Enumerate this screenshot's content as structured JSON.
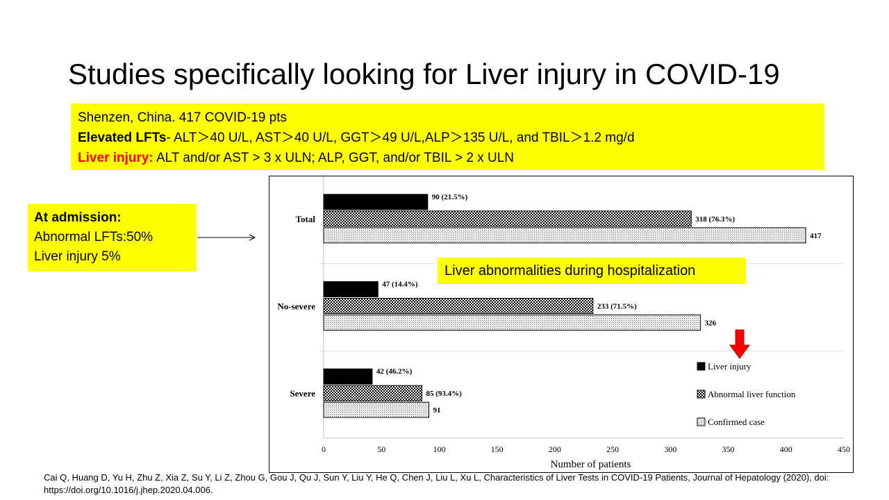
{
  "slide": {
    "title": "Studies specifically looking for Liver injury in COVID-19",
    "citation": "Cai Q, Huang D, Yu H, Zhu Z, Xia Z, Su Y, Li Z, Zhou G, Gou J, Qu J, Sun Y, Liu Y, He Q, Chen J, Liu L, Xu L, Characteristics of Liver Tests in COVID-19 Patients, Journal of Hepatology (2020), doi: https://doi.org/10.1016/j.jhep.2020.04.006."
  },
  "info_box": {
    "line1": "Shenzen, China.  417 COVID-19 pts",
    "line2_bold": "Elevated LFTs",
    "line2_rest": "- ALT＞40 U/L, AST＞40 U/L, GGT＞49 U/L,ALP＞135 U/L, and TBIL＞1.2 mg/d",
    "line3_red": "Liver injury:",
    "line3_rest": " ALT and/or AST > 3 x ULN; ALP, GGT, and/or TBIL > 2 x ULN"
  },
  "admission_box": {
    "heading": "At admission:",
    "line1": "Abnormal LFTs:50%",
    "line2": "Liver injury 5%"
  },
  "overlay_label": "Liver abnormalities during hospitalization",
  "colors": {
    "highlight": "#ffff00",
    "accent_red": "#ff0000"
  },
  "chart_data": {
    "type": "bar",
    "orientation": "horizontal",
    "categories": [
      "Total",
      "No-severe",
      "Severe"
    ],
    "series": [
      {
        "name": "Liver injury",
        "values": [
          90,
          47,
          42
        ],
        "labels": [
          "90 (21.5%)",
          "47 (14.4%)",
          "42 (46.2%)"
        ],
        "pattern": "solid"
      },
      {
        "name": "Abnormal liver function",
        "values": [
          318,
          233,
          85
        ],
        "labels": [
          "318 (76.3%)",
          "233 (71.5%)",
          "85 (93.4%)"
        ],
        "pattern": "checker"
      },
      {
        "name": "Confirmed case",
        "values": [
          417,
          326,
          91
        ],
        "labels": [
          "417",
          "326",
          "91"
        ],
        "pattern": "dots"
      }
    ],
    "xlabel": "Number of patients",
    "xlim": [
      0,
      450
    ],
    "xticks": [
      0,
      50,
      100,
      150,
      200,
      250,
      300,
      350,
      400,
      450
    ],
    "grid": false,
    "legend_position": "bottom-right"
  }
}
